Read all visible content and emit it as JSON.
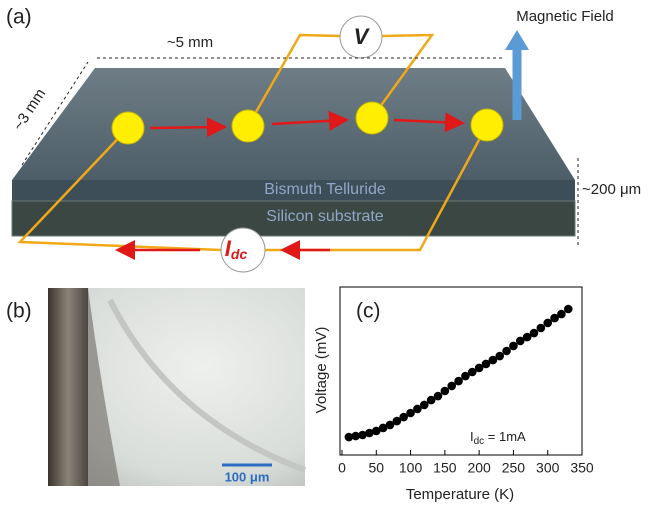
{
  "panel_a": {
    "label": "(a)",
    "length": "~5 mm",
    "width": "~3 mm",
    "voltmeter": "V",
    "field": "Magnetic Field",
    "layer_top": "Bismuth Telluride",
    "layer_bottom": "Silicon substrate",
    "thickness": "~200 μm",
    "current_symbol": "I",
    "current_subscript": "dc"
  },
  "panel_b": {
    "label": "(b)",
    "scale_bar": "100 μm"
  },
  "chart_data": {
    "type": "scatter",
    "panel_label": "(c)",
    "x_label": "Temperature (K)",
    "y_label": "Voltage (mV)",
    "annotation": {
      "symbol": "I",
      "subscript": "dc",
      "text": " = 1mA"
    },
    "color": "#000000",
    "x": [
      10,
      20,
      30,
      40,
      50,
      60,
      70,
      80,
      90,
      100,
      110,
      120,
      130,
      140,
      150,
      160,
      170,
      180,
      190,
      200,
      210,
      220,
      230,
      240,
      250,
      260,
      270,
      280,
      290,
      300,
      310,
      320,
      330
    ],
    "values": [
      1.07,
      1.13,
      1.19,
      1.31,
      1.43,
      1.61,
      1.79,
      2.02,
      2.26,
      2.5,
      2.74,
      2.98,
      3.27,
      3.51,
      3.81,
      4.11,
      4.4,
      4.7,
      4.94,
      5.18,
      5.42,
      5.65,
      5.89,
      6.19,
      6.49,
      6.79,
      7.02,
      7.26,
      7.56,
      7.86,
      8.15,
      8.39,
      8.69
    ],
    "xlim": [
      0,
      350
    ],
    "xticks": [
      0,
      50,
      100,
      150,
      200,
      250,
      300,
      350
    ],
    "ylim": [
      0,
      10
    ]
  }
}
